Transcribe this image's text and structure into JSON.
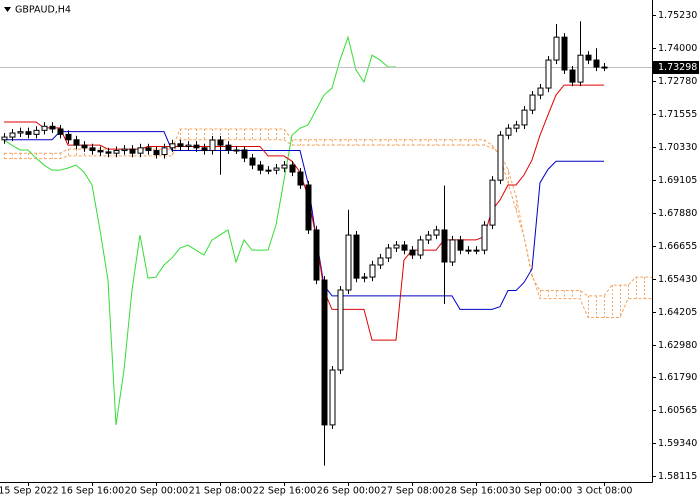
{
  "chart_data": {
    "type": "candlestick",
    "title": "GBPAUD,H4",
    "categories": [
      null,
      null,
      null,
      "15 Sep 2022",
      null,
      null,
      null,
      null,
      null,
      null,
      null,
      "16 Sep 16:00",
      null,
      null,
      null,
      null,
      null,
      null,
      null,
      "20 Sep 00:00",
      null,
      null,
      null,
      null,
      null,
      null,
      null,
      "21 Sep 08:00",
      null,
      null,
      null,
      null,
      null,
      null,
      null,
      "22 Sep 16:00",
      null,
      null,
      null,
      null,
      null,
      null,
      null,
      "26 Sep 00:00",
      null,
      null,
      null,
      null,
      null,
      null,
      null,
      "27 Sep 08:00",
      null,
      null,
      null,
      null,
      null,
      null,
      null,
      "28 Sep 16:00",
      null,
      null,
      null,
      null,
      null,
      null,
      null,
      "30 Sep 00:00",
      null,
      null,
      null,
      null,
      null,
      null,
      null,
      "3 Oct 08:00",
      null,
      null,
      null,
      null,
      null,
      null
    ],
    "open": [
      1.706,
      1.707,
      1.7085,
      1.709,
      1.708,
      1.7095,
      1.711,
      1.71,
      1.708,
      1.706,
      1.704,
      1.703,
      1.702,
      1.7015,
      1.701,
      1.702,
      1.7025,
      1.701,
      1.703,
      1.702,
      1.7005,
      1.703,
      1.7045,
      1.7035,
      1.704,
      1.703,
      1.702,
      1.7059,
      1.704,
      1.7022,
      1.7022,
      1.6992,
      1.6966,
      1.6947,
      1.6947,
      1.6955,
      1.6966,
      1.694,
      1.6892,
      1.6725,
      1.6539,
      1.6001,
      1.6205,
      1.6502,
      1.6706,
      1.6546,
      1.655,
      1.6595,
      1.6621,
      1.6658,
      1.6669,
      1.665,
      1.6632,
      1.6688,
      1.6706,
      1.6725,
      1.6606,
      1.6688,
      1.665,
      1.665,
      1.665,
      1.6743,
      1.691,
      1.7077,
      1.7103,
      1.7115,
      1.717,
      1.7226,
      1.7252,
      1.7356,
      1.7441,
      1.7319,
      1.7274,
      1.7374,
      1.7356,
      1.733,
      null,
      null,
      null,
      null,
      null,
      null
    ],
    "high": [
      1.7085,
      1.71,
      1.7105,
      1.7105,
      1.711,
      1.7125,
      1.7125,
      1.7115,
      1.7095,
      1.7075,
      1.7055,
      1.7045,
      1.7035,
      1.703,
      1.7035,
      1.704,
      1.704,
      1.7045,
      1.7045,
      1.7035,
      1.7045,
      1.706,
      1.706,
      1.7055,
      1.7055,
      1.7045,
      1.7074,
      1.7074,
      1.7055,
      1.7037,
      1.7037,
      1.7007,
      1.6981,
      1.6962,
      1.697,
      1.6981,
      1.6981,
      1.6955,
      1.6907,
      1.674,
      1.6554,
      1.622,
      1.6517,
      1.68,
      1.6721,
      1.6565,
      1.661,
      1.6636,
      1.6673,
      1.6684,
      1.6684,
      1.6665,
      1.6703,
      1.6721,
      1.674,
      1.689,
      1.6703,
      1.6703,
      1.6665,
      1.6665,
      1.6758,
      1.6925,
      1.7092,
      1.7118,
      1.713,
      1.7185,
      1.7241,
      1.7267,
      1.7371,
      1.749,
      1.7456,
      1.7334,
      1.75,
      1.7389,
      1.74,
      1.7345,
      null,
      null,
      null,
      null,
      null,
      null
    ],
    "low": [
      1.7045,
      1.7055,
      1.707,
      1.7065,
      1.7065,
      1.708,
      1.7085,
      1.7065,
      1.7045,
      1.7025,
      1.7015,
      1.7005,
      1.7,
      1.6995,
      1.6995,
      1.7005,
      1.6995,
      1.6995,
      1.7005,
      1.699,
      1.699,
      1.7015,
      1.702,
      1.702,
      1.7015,
      1.7005,
      1.7005,
      1.693,
      1.7007,
      1.7007,
      1.6977,
      1.6951,
      1.6932,
      1.6932,
      1.6932,
      1.694,
      1.6925,
      1.6877,
      1.671,
      1.6524,
      1.585,
      1.5986,
      1.619,
      1.6487,
      1.6531,
      1.6531,
      1.6535,
      1.658,
      1.6606,
      1.6643,
      1.6635,
      1.6617,
      1.6617,
      1.6673,
      1.6691,
      1.645,
      1.6591,
      1.6635,
      1.6635,
      1.6635,
      1.6635,
      1.6728,
      1.6895,
      1.7062,
      1.7088,
      1.71,
      1.7155,
      1.7211,
      1.7237,
      1.7341,
      1.7304,
      1.7259,
      1.7259,
      1.7341,
      1.7315,
      1.7315,
      null,
      null,
      null,
      null,
      null,
      null
    ],
    "close": [
      1.707,
      1.7085,
      1.709,
      1.708,
      1.7095,
      1.711,
      1.71,
      1.708,
      1.706,
      1.704,
      1.703,
      1.702,
      1.7015,
      1.701,
      1.702,
      1.7025,
      1.701,
      1.703,
      1.702,
      1.7005,
      1.703,
      1.7045,
      1.7035,
      1.704,
      1.703,
      1.702,
      1.7059,
      1.704,
      1.7022,
      1.7022,
      1.6992,
      1.6966,
      1.6947,
      1.6947,
      1.6955,
      1.6966,
      1.694,
      1.6892,
      1.6725,
      1.6539,
      1.6001,
      1.6205,
      1.6502,
      1.6706,
      1.6546,
      1.655,
      1.6595,
      1.6621,
      1.6658,
      1.6669,
      1.665,
      1.6632,
      1.6688,
      1.6706,
      1.6725,
      1.6606,
      1.6688,
      1.665,
      1.665,
      1.665,
      1.6743,
      1.691,
      1.7077,
      1.7103,
      1.7115,
      1.717,
      1.7226,
      1.7252,
      1.7356,
      1.7441,
      1.7319,
      1.7274,
      1.7374,
      1.7356,
      1.733,
      1.733,
      null,
      null,
      null,
      null,
      null,
      null
    ],
    "up_color": "#ffffff",
    "down_color": "#000000",
    "lines": [
      {
        "color": "#f4a460",
        "dashed": true,
        "values": [
          1.701,
          1.701,
          1.701,
          1.701,
          1.701,
          1.701,
          1.701,
          1.701,
          1.7025,
          1.7025,
          1.7025,
          1.7025,
          1.7025,
          1.7025,
          1.7025,
          1.7025,
          1.7025,
          1.7025,
          1.7025,
          1.7025,
          1.7025,
          1.7025,
          1.71,
          1.71,
          1.71,
          1.71,
          1.71,
          1.71,
          1.71,
          1.71,
          1.71,
          1.71,
          1.71,
          1.71,
          1.71,
          1.71,
          1.706,
          1.706,
          1.706,
          1.706,
          1.706,
          1.706,
          1.706,
          1.706,
          1.706,
          1.706,
          1.706,
          1.706,
          1.706,
          1.706,
          1.706,
          1.706,
          1.706,
          1.706,
          1.706,
          1.706,
          1.706,
          1.706,
          1.706,
          1.706,
          1.706,
          1.704,
          1.7,
          1.69,
          1.68,
          1.67,
          1.655,
          1.65,
          1.65,
          1.65,
          1.65,
          1.65,
          1.65,
          1.648,
          1.648,
          1.648,
          1.652,
          1.652,
          1.652,
          1.655,
          1.655,
          1.655
        ]
      },
      {
        "color": "#f4a460",
        "dashed": true,
        "values": [
          1.699,
          1.699,
          1.699,
          1.699,
          1.699,
          1.699,
          1.699,
          1.699,
          1.7,
          1.7,
          1.7,
          1.7,
          1.7,
          1.7,
          1.7,
          1.7,
          1.7,
          1.7,
          1.7,
          1.7,
          1.7,
          1.7,
          1.706,
          1.706,
          1.706,
          1.706,
          1.706,
          1.706,
          1.706,
          1.706,
          1.706,
          1.706,
          1.706,
          1.706,
          1.706,
          1.706,
          1.704,
          1.704,
          1.704,
          1.704,
          1.704,
          1.704,
          1.704,
          1.704,
          1.704,
          1.704,
          1.704,
          1.704,
          1.704,
          1.704,
          1.704,
          1.704,
          1.704,
          1.704,
          1.704,
          1.704,
          1.704,
          1.704,
          1.704,
          1.704,
          1.704,
          1.703,
          1.701,
          1.695,
          1.685,
          1.67,
          1.656,
          1.647,
          1.647,
          1.647,
          1.647,
          1.647,
          1.647,
          1.64,
          1.64,
          1.64,
          1.64,
          1.64,
          1.647,
          1.647,
          1.647,
          1.647
        ]
      },
      {
        "color": "#33dd33",
        "dashed": false,
        "values": [
          1.7059,
          1.704,
          1.7022,
          1.7022,
          1.6992,
          1.6966,
          1.6947,
          1.6947,
          1.6955,
          1.6966,
          1.694,
          1.6892,
          1.6725,
          1.6539,
          1.6001,
          1.6205,
          1.6502,
          1.6706,
          1.6546,
          1.655,
          1.6595,
          1.6621,
          1.6658,
          1.6669,
          1.665,
          1.6632,
          1.6688,
          1.6706,
          1.6725,
          1.6606,
          1.6688,
          1.665,
          1.665,
          1.665,
          1.6743,
          1.691,
          1.7077,
          1.7103,
          1.7115,
          1.717,
          1.7226,
          1.7252,
          1.7356,
          1.7441,
          1.7319,
          1.7274,
          1.7374,
          1.7356,
          1.733,
          1.733,
          null,
          null,
          null,
          null,
          null,
          null,
          null,
          null,
          null,
          null,
          null,
          null,
          null,
          null,
          null,
          null,
          null,
          null,
          null,
          null,
          null,
          null,
          null,
          null,
          null,
          null,
          null,
          null,
          null,
          null,
          null,
          null
        ]
      },
      {
        "color": "#0000cc",
        "dashed": false,
        "values": [
          1.706,
          1.706,
          1.706,
          1.706,
          1.706,
          1.706,
          1.706,
          1.709,
          1.709,
          1.709,
          1.709,
          1.709,
          1.709,
          1.709,
          1.709,
          1.709,
          1.709,
          1.709,
          1.709,
          1.709,
          1.709,
          1.702,
          1.702,
          1.702,
          1.702,
          1.702,
          1.702,
          1.702,
          1.702,
          1.702,
          1.702,
          1.702,
          1.702,
          1.702,
          1.702,
          1.702,
          1.702,
          1.702,
          1.69,
          1.67,
          1.652,
          1.648,
          1.648,
          1.648,
          1.648,
          1.648,
          1.648,
          1.648,
          1.648,
          1.648,
          1.648,
          1.648,
          1.648,
          1.648,
          1.648,
          1.648,
          1.648,
          1.643,
          1.643,
          1.643,
          1.643,
          1.643,
          1.644,
          1.65,
          1.65,
          1.653,
          1.658,
          1.69,
          1.695,
          1.698,
          1.698,
          1.698,
          1.698,
          1.698,
          1.698,
          1.698,
          null,
          null,
          null,
          null,
          null,
          null
        ]
      },
      {
        "color": "#e00000",
        "dashed": false,
        "values": [
          1.7126,
          1.7126,
          1.7126,
          1.7126,
          1.7126,
          1.7104,
          1.7104,
          1.7104,
          1.704,
          1.704,
          1.704,
          1.704,
          1.704,
          1.7025,
          1.7025,
          1.7025,
          1.7025,
          1.7025,
          1.7035,
          1.7035,
          1.7035,
          1.7035,
          1.7035,
          1.7035,
          1.7035,
          1.7035,
          1.7035,
          1.7035,
          1.7035,
          1.7035,
          1.7035,
          1.7035,
          1.7035,
          1.7,
          1.7,
          1.7,
          1.698,
          1.694,
          1.685,
          1.67,
          1.65,
          1.643,
          1.643,
          1.643,
          1.643,
          1.643,
          1.6316,
          1.6316,
          1.6316,
          1.6316,
          1.6613,
          1.665,
          1.665,
          1.665,
          1.665,
          1.6688,
          1.6688,
          1.6688,
          1.6688,
          1.6688,
          1.67,
          1.6799,
          1.6836,
          1.6892,
          1.6892,
          1.6929,
          1.6985,
          1.7077,
          1.7152,
          1.7226,
          1.7263,
          1.7263,
          1.7263,
          1.7263,
          1.7263,
          1.7263,
          null,
          null,
          null,
          null,
          null,
          null
        ]
      }
    ],
    "cloud_color": "#f4a460",
    "ylim": [
      1.5789,
      1.7579
    ],
    "yticks": [
      {
        "value": 1.7523,
        "label": "1.75230"
      },
      {
        "value": 1.74,
        "label": "1.74000"
      },
      {
        "value": 1.7278,
        "label": "1.72780"
      },
      {
        "value": 1.71555,
        "label": "1.71555"
      },
      {
        "value": 1.7033,
        "label": "1.70330"
      },
      {
        "value": 1.69105,
        "label": "1.69105"
      },
      {
        "value": 1.6788,
        "label": "1.67880"
      },
      {
        "value": 1.66655,
        "label": "1.66655"
      },
      {
        "value": 1.6543,
        "label": "1.65430"
      },
      {
        "value": 1.64205,
        "label": "1.64205"
      },
      {
        "value": 1.6298,
        "label": "1.62980"
      },
      {
        "value": 1.6179,
        "label": "1.61790"
      },
      {
        "value": 1.60565,
        "label": "1.60565"
      },
      {
        "value": 1.5934,
        "label": "1.59340"
      },
      {
        "value": 1.58115,
        "label": "1.58115"
      }
    ],
    "current_price": 1.73298,
    "current_price_color": "#c0c0c0",
    "grid": false
  }
}
